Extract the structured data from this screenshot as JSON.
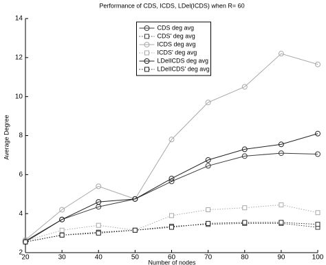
{
  "chart_data": {
    "type": "line",
    "title": "Performance of CDS, ICDS, LDel(ICDS) when R= 60",
    "x_label": "Number of nodes",
    "y_label": "Average Degree",
    "x": [
      20,
      30,
      40,
      50,
      60,
      70,
      80,
      90,
      100
    ],
    "xlim": [
      20,
      100
    ],
    "xticks": [
      20,
      30,
      40,
      50,
      60,
      70,
      80,
      90,
      100
    ],
    "ylim": [
      2,
      14
    ],
    "yticks": [
      2,
      4,
      6,
      8,
      10,
      12,
      14
    ],
    "legend": "top-center",
    "series": [
      {
        "name": "CDS deg avg",
        "color": "#3a3a3a",
        "marker": "circle",
        "dash": "solid",
        "values": [
          2.6,
          3.7,
          4.35,
          4.75,
          5.65,
          6.45,
          6.95,
          7.1,
          7.05
        ]
      },
      {
        "name": "CDS' deg avg",
        "color": "#3a3a3a",
        "marker": "square",
        "dash": "dotted",
        "values": [
          2.55,
          2.9,
          3.05,
          3.15,
          3.35,
          3.45,
          3.5,
          3.5,
          3.3
        ]
      },
      {
        "name": "ICDS deg avg",
        "color": "#a8a8a8",
        "marker": "circle",
        "dash": "solid",
        "values": [
          2.65,
          4.2,
          5.4,
          4.75,
          7.8,
          9.7,
          10.5,
          12.2,
          11.65
        ]
      },
      {
        "name": "ICDS' deg avg",
        "color": "#a8a8a8",
        "marker": "square",
        "dash": "dotted",
        "values": [
          2.6,
          3.15,
          3.4,
          3.15,
          3.9,
          4.2,
          4.3,
          4.45,
          4.05
        ]
      },
      {
        "name": "LDelICDS deg avg",
        "color": "#222222",
        "marker": "circle",
        "dash": "solid",
        "values": [
          2.55,
          3.7,
          4.6,
          4.75,
          5.8,
          6.75,
          7.3,
          7.55,
          8.1
        ]
      },
      {
        "name": "LDelICDS' deg avg",
        "color": "#222222",
        "marker": "square",
        "dash": "dotted",
        "values": [
          2.55,
          2.9,
          3.0,
          3.15,
          3.3,
          3.5,
          3.55,
          3.55,
          3.45
        ]
      }
    ]
  }
}
